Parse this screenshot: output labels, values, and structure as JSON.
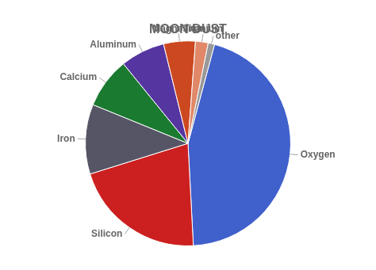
{
  "chart_data": {
    "type": "pie",
    "title": "MOON DUST",
    "categories": [
      "Oxygen",
      "Silicon",
      "Iron",
      "Calcium",
      "Aluminum",
      "Magnesium",
      "Titanium",
      "other"
    ],
    "values": [
      45,
      21,
      11,
      8,
      7,
      5,
      2,
      1
    ],
    "colors": [
      "#4060cc",
      "#cc2020",
      "#555566",
      "#1a7a30",
      "#5535a0",
      "#cc4820",
      "#e08868",
      "#999999"
    ]
  }
}
